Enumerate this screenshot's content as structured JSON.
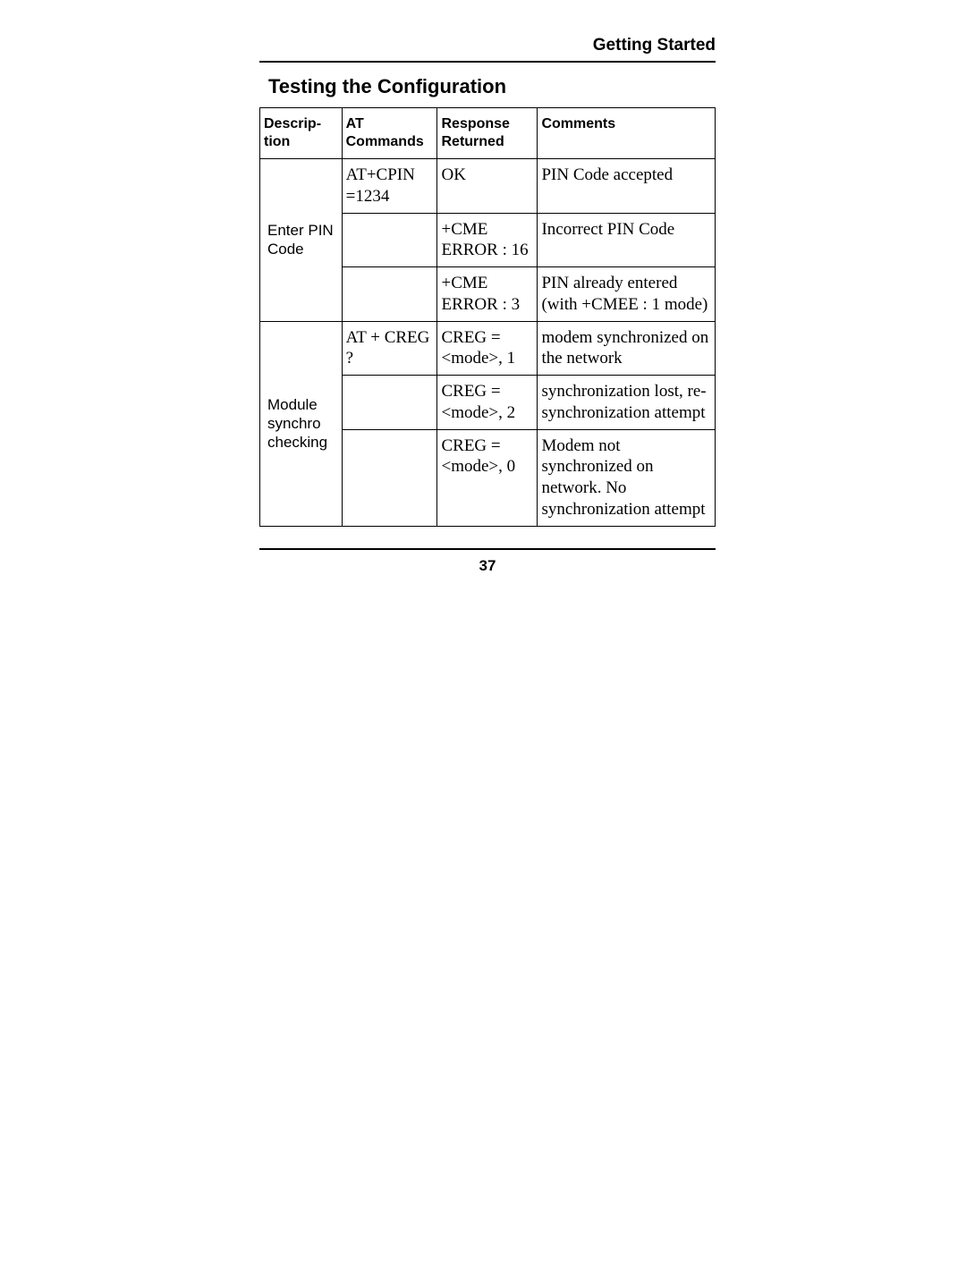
{
  "header": "Getting Started",
  "section_title": "Testing the Configuration",
  "page_number": "37",
  "columns": [
    "Descrip-\ntion",
    "AT\nCommands",
    "Response\nReturned",
    "Comments"
  ],
  "groups": [
    {
      "desc": "Enter PIN Code",
      "rows": [
        {
          "cmd": "AT+CPIN =1234",
          "resp": "OK",
          "comment": "PIN Code accepted"
        },
        {
          "cmd": "",
          "resp": "+CME ERROR : 16",
          "comment": "Incorrect PIN Code"
        },
        {
          "cmd": "",
          "resp": "+CME ERROR : 3",
          "comment": "PIN already entered (with +CMEE : 1 mode)"
        }
      ]
    },
    {
      "desc": "Module synchro checking",
      "rows": [
        {
          "cmd": "AT + CREG ?",
          "resp": "CREG = <mode>, 1",
          "comment": "modem synchronized on the network"
        },
        {
          "cmd": "",
          "resp": "CREG = <mode>, 2",
          "comment": "synchronization lost, re-synchronization attempt"
        },
        {
          "cmd": "",
          "resp": "CREG = <mode>, 0",
          "comment": "Modem not synchronized on network.  No synchronization attempt"
        }
      ]
    }
  ]
}
